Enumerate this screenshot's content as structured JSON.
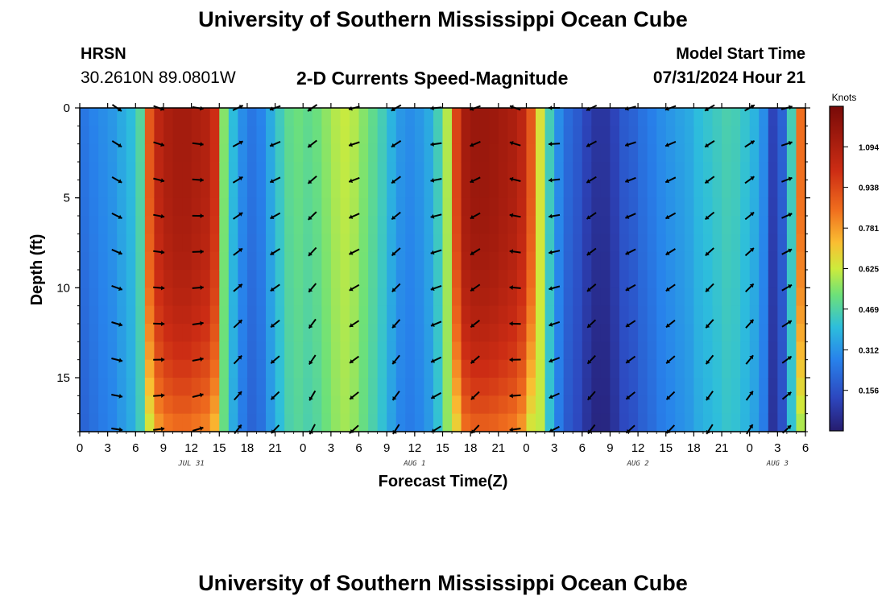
{
  "header": {
    "title": "University of Southern Mississippi Ocean Cube",
    "station_id": "HRSN",
    "station_coords": "30.2610N  89.0801W",
    "subtitle": "2-D Currents Speed-Magnitude",
    "model_start_label": "Model Start Time",
    "model_start_value": "07/31/2024 Hour 21"
  },
  "footer": {
    "title": "University of Southern Mississippi Ocean Cube"
  },
  "chart_data": {
    "type": "heatmap",
    "title": "2-D Currents Speed-Magnitude",
    "xlabel": "Forecast Time(Z)",
    "ylabel": "Depth (ft)",
    "x_tick_labels": [
      "0",
      "3",
      "6",
      "9",
      "12",
      "15",
      "18",
      "21",
      "0",
      "3",
      "6",
      "9",
      "12",
      "15",
      "18",
      "21",
      "0",
      "3",
      "6",
      "9",
      "12",
      "15",
      "18",
      "21",
      "0",
      "3",
      "6"
    ],
    "x_range_hours": [
      0,
      78
    ],
    "date_labels": [
      {
        "label": "JUL 31",
        "hour": 12
      },
      {
        "label": "AUG 1",
        "hour": 36
      },
      {
        "label": "AUG 2",
        "hour": 60
      },
      {
        "label": "AUG 3",
        "hour": 75
      }
    ],
    "y_ticks": [
      0,
      5,
      10,
      15
    ],
    "y_range_ft": [
      0,
      18
    ],
    "colorbar": {
      "unit": "Knots",
      "range": [
        0,
        1.25
      ],
      "ticks": [
        "1.094",
        "0.938",
        "0.781",
        "0.625",
        "0.469",
        "0.312",
        "0.156"
      ],
      "tick_values": [
        1.094,
        0.938,
        0.781,
        0.625,
        0.469,
        0.312,
        0.156
      ]
    },
    "speed_profile_knots": {
      "hours": [
        0,
        1,
        2,
        3,
        4,
        5,
        6,
        7,
        8,
        9,
        10,
        11,
        12,
        13,
        14,
        15,
        16,
        17,
        18,
        19,
        20,
        21,
        22,
        23,
        24,
        25,
        26,
        27,
        28,
        29,
        30,
        31,
        32,
        33,
        34,
        35,
        36,
        37,
        38,
        39,
        40,
        41,
        42,
        43,
        44,
        45,
        46,
        47,
        48,
        49,
        50,
        51,
        52,
        53,
        54,
        55,
        56,
        57,
        58,
        59,
        60,
        61,
        62,
        63,
        64,
        65,
        66,
        67,
        68,
        69,
        70,
        71,
        72,
        73,
        74,
        75,
        76,
        77,
        78
      ],
      "surface": [
        0.25,
        0.28,
        0.3,
        0.32,
        0.36,
        0.4,
        0.48,
        0.9,
        1.05,
        1.1,
        1.12,
        1.12,
        1.1,
        1.08,
        1.0,
        0.55,
        0.4,
        0.3,
        0.25,
        0.28,
        0.36,
        0.44,
        0.5,
        0.52,
        0.5,
        0.52,
        0.56,
        0.6,
        0.62,
        0.6,
        0.55,
        0.5,
        0.45,
        0.38,
        0.32,
        0.3,
        0.32,
        0.36,
        0.45,
        0.6,
        0.95,
        1.12,
        1.15,
        1.15,
        1.14,
        1.12,
        1.1,
        1.05,
        0.9,
        0.65,
        0.45,
        0.3,
        0.22,
        0.18,
        0.12,
        0.08,
        0.08,
        0.12,
        0.18,
        0.2,
        0.24,
        0.27,
        0.3,
        0.32,
        0.34,
        0.36,
        0.4,
        0.42,
        0.44,
        0.46,
        0.45,
        0.42,
        0.38,
        0.3,
        0.12,
        0.2,
        0.45,
        0.85,
        1.0
      ]
    },
    "depth_rows_ft": [
      0,
      1,
      2,
      3,
      4,
      5,
      6,
      7,
      8,
      9,
      10,
      11,
      12,
      13,
      14,
      15,
      16,
      17,
      18
    ],
    "arrow_rows_ft": [
      0,
      2,
      4,
      6,
      8,
      10,
      12,
      14,
      16,
      18
    ],
    "arrow_columns_hours": [
      4,
      8.5,
      12.7,
      17,
      21,
      25,
      29.5,
      34,
      38.3,
      42.5,
      46.8,
      51,
      55,
      59.2,
      63.5,
      67.7,
      72,
      76
    ]
  }
}
